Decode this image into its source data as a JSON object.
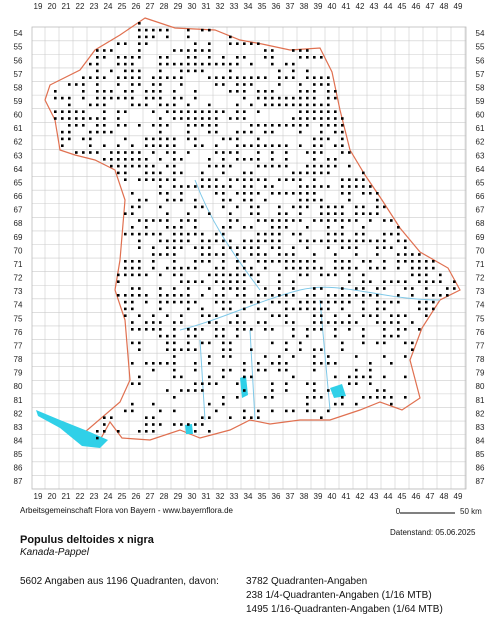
{
  "map": {
    "x_labels": [
      19,
      20,
      21,
      22,
      23,
      24,
      25,
      26,
      27,
      28,
      29,
      30,
      31,
      32,
      33,
      34,
      35,
      36,
      37,
      38,
      39,
      40,
      41,
      42,
      43,
      44,
      45,
      46,
      47,
      48,
      49
    ],
    "y_labels": [
      54,
      55,
      56,
      57,
      58,
      59,
      60,
      61,
      62,
      63,
      64,
      65,
      66,
      67,
      68,
      69,
      70,
      71,
      72,
      73,
      74,
      75,
      76,
      77,
      78,
      79,
      80,
      81,
      82,
      83,
      84,
      85,
      86,
      87
    ]
  },
  "footer": {
    "credit": "Arbeitsgemeinschaft Flora von Bayern - www.bayernflora.de",
    "scale_start": "0",
    "scale_end": "50 km",
    "date": "Datenstand: 05.06.2025"
  },
  "species": {
    "name": "Populus deltoides x nigra",
    "common_name": "Kanada-Pappel"
  },
  "stats": {
    "summary": "5602 Angaben aus 1196 Quadranten, davon:",
    "lines": [
      "3782 Quadranten-Angaben",
      "238 1/4-Quadranten-Angaben (1/16 MTB)",
      "1495 1/16-Quadranten-Angaben (1/64 MTB)"
    ]
  }
}
